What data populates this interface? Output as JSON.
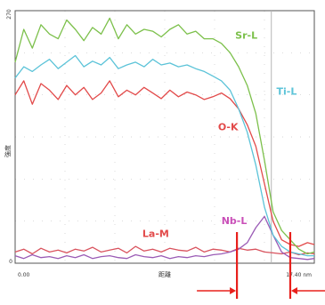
{
  "chart_data": {
    "type": "line",
    "ylabel": "強度",
    "xlabel": "距離",
    "x_unit": "nm",
    "xlim": [
      0,
      17.4
    ],
    "x_tick_labels": [
      "0.00",
      "17.40 nm"
    ],
    "ylim": [
      0,
      270
    ],
    "y_tick_labels": [
      "0",
      "270"
    ],
    "grid": true,
    "reference_line_x": 14.9,
    "series": [
      {
        "name": "Sr-L",
        "color": "#7cc04b",
        "x": [
          0,
          0.5,
          1,
          1.5,
          2,
          2.5,
          3,
          3.5,
          4,
          4.5,
          5,
          5.5,
          6,
          6.5,
          7,
          7.5,
          8,
          8.5,
          9,
          9.5,
          10,
          10.5,
          11,
          11.5,
          12,
          12.5,
          13,
          13.5,
          14,
          14.5,
          15,
          15.5,
          16,
          16.5,
          17,
          17.4
        ],
        "y": [
          215,
          250,
          230,
          255,
          245,
          240,
          260,
          250,
          238,
          252,
          245,
          262,
          240,
          255,
          245,
          250,
          248,
          242,
          250,
          255,
          245,
          248,
          240,
          240,
          235,
          225,
          210,
          190,
          160,
          110,
          55,
          35,
          25,
          15,
          10,
          12
        ]
      },
      {
        "name": "Ti-L",
        "color": "#5bc3d8",
        "x": [
          0,
          0.5,
          1,
          1.5,
          2,
          2.5,
          3,
          3.5,
          4,
          4.5,
          5,
          5.5,
          6,
          6.5,
          7,
          7.5,
          8,
          8.5,
          9,
          9.5,
          10,
          10.5,
          11,
          11.5,
          12,
          12.5,
          13,
          13.5,
          14,
          14.5,
          15,
          15.5,
          16,
          16.5,
          17,
          17.4
        ],
        "y": [
          198,
          210,
          205,
          212,
          218,
          208,
          215,
          222,
          210,
          216,
          212,
          220,
          208,
          212,
          215,
          210,
          218,
          212,
          214,
          210,
          212,
          208,
          205,
          200,
          195,
          185,
          165,
          140,
          105,
          60,
          30,
          18,
          12,
          10,
          8,
          8
        ]
      },
      {
        "name": "O-K",
        "color": "#e24a4a",
        "x": [
          0,
          0.5,
          1,
          1.5,
          2,
          2.5,
          3,
          3.5,
          4,
          4.5,
          5,
          5.5,
          6,
          6.5,
          7,
          7.5,
          8,
          8.5,
          9,
          9.5,
          10,
          10.5,
          11,
          11.5,
          12,
          12.5,
          13,
          13.5,
          14,
          14.5,
          15,
          15.5,
          16,
          16.5,
          17,
          17.4
        ],
        "y": [
          180,
          195,
          170,
          192,
          185,
          175,
          190,
          180,
          188,
          175,
          182,
          195,
          178,
          185,
          180,
          188,
          182,
          176,
          185,
          178,
          183,
          180,
          175,
          178,
          182,
          176,
          165,
          148,
          125,
          85,
          45,
          25,
          20,
          18,
          22,
          20
        ]
      },
      {
        "name": "La-M",
        "color": "#d9535e",
        "x": [
          0,
          0.5,
          1,
          1.5,
          2,
          2.5,
          3,
          3.5,
          4,
          4.5,
          5,
          5.5,
          6,
          6.5,
          7,
          7.5,
          8,
          8.5,
          9,
          9.5,
          10,
          10.5,
          11,
          11.5,
          12,
          12.5,
          13,
          13.5,
          14,
          14.5,
          15,
          15.5,
          16,
          16.5,
          17,
          17.4
        ],
        "y": [
          12,
          15,
          10,
          16,
          12,
          14,
          11,
          15,
          13,
          17,
          12,
          14,
          16,
          11,
          18,
          13,
          15,
          12,
          16,
          14,
          13,
          17,
          12,
          15,
          14,
          12,
          16,
          14,
          15,
          12,
          11,
          10,
          12,
          9,
          11,
          10
        ]
      },
      {
        "name": "Nb-L",
        "color": "#9a5bb5",
        "x": [
          0,
          0.5,
          1,
          1.5,
          2,
          2.5,
          3,
          3.5,
          4,
          4.5,
          5,
          5.5,
          6,
          6.5,
          7,
          7.5,
          8,
          8.5,
          9,
          9.5,
          10,
          10.5,
          11,
          11.5,
          12,
          12.5,
          13,
          13.5,
          14,
          14.5,
          15,
          15.5,
          16,
          16.5,
          17,
          17.4
        ],
        "y": [
          8,
          5,
          9,
          6,
          7,
          5,
          8,
          6,
          9,
          5,
          7,
          8,
          6,
          5,
          9,
          7,
          6,
          8,
          5,
          7,
          6,
          8,
          7,
          9,
          10,
          12,
          15,
          22,
          38,
          50,
          30,
          12,
          6,
          5,
          4,
          5
        ]
      }
    ],
    "annotations": [
      {
        "text": "Sr-L",
        "color": "#7cc04b",
        "x": 12.8,
        "y": 240
      },
      {
        "text": "Ti-L",
        "color": "#5bc3d8",
        "x": 15.2,
        "y": 180
      },
      {
        "text": "O-K",
        "color": "#e24a4a",
        "x": 11.8,
        "y": 142
      },
      {
        "text": "La-M",
        "color": "#e24a4a",
        "x": 7.4,
        "y": 28
      },
      {
        "text": "Nb-L",
        "color": "#c94fb8",
        "x": 12.0,
        "y": 42
      }
    ],
    "markers": {
      "color": "#e8201c",
      "interface_lines_x": [
        12.9,
        16.0
      ],
      "arrows": [
        {
          "direction": "right",
          "target_x": 12.9
        },
        {
          "direction": "left",
          "target_x": 16.0
        }
      ]
    }
  }
}
